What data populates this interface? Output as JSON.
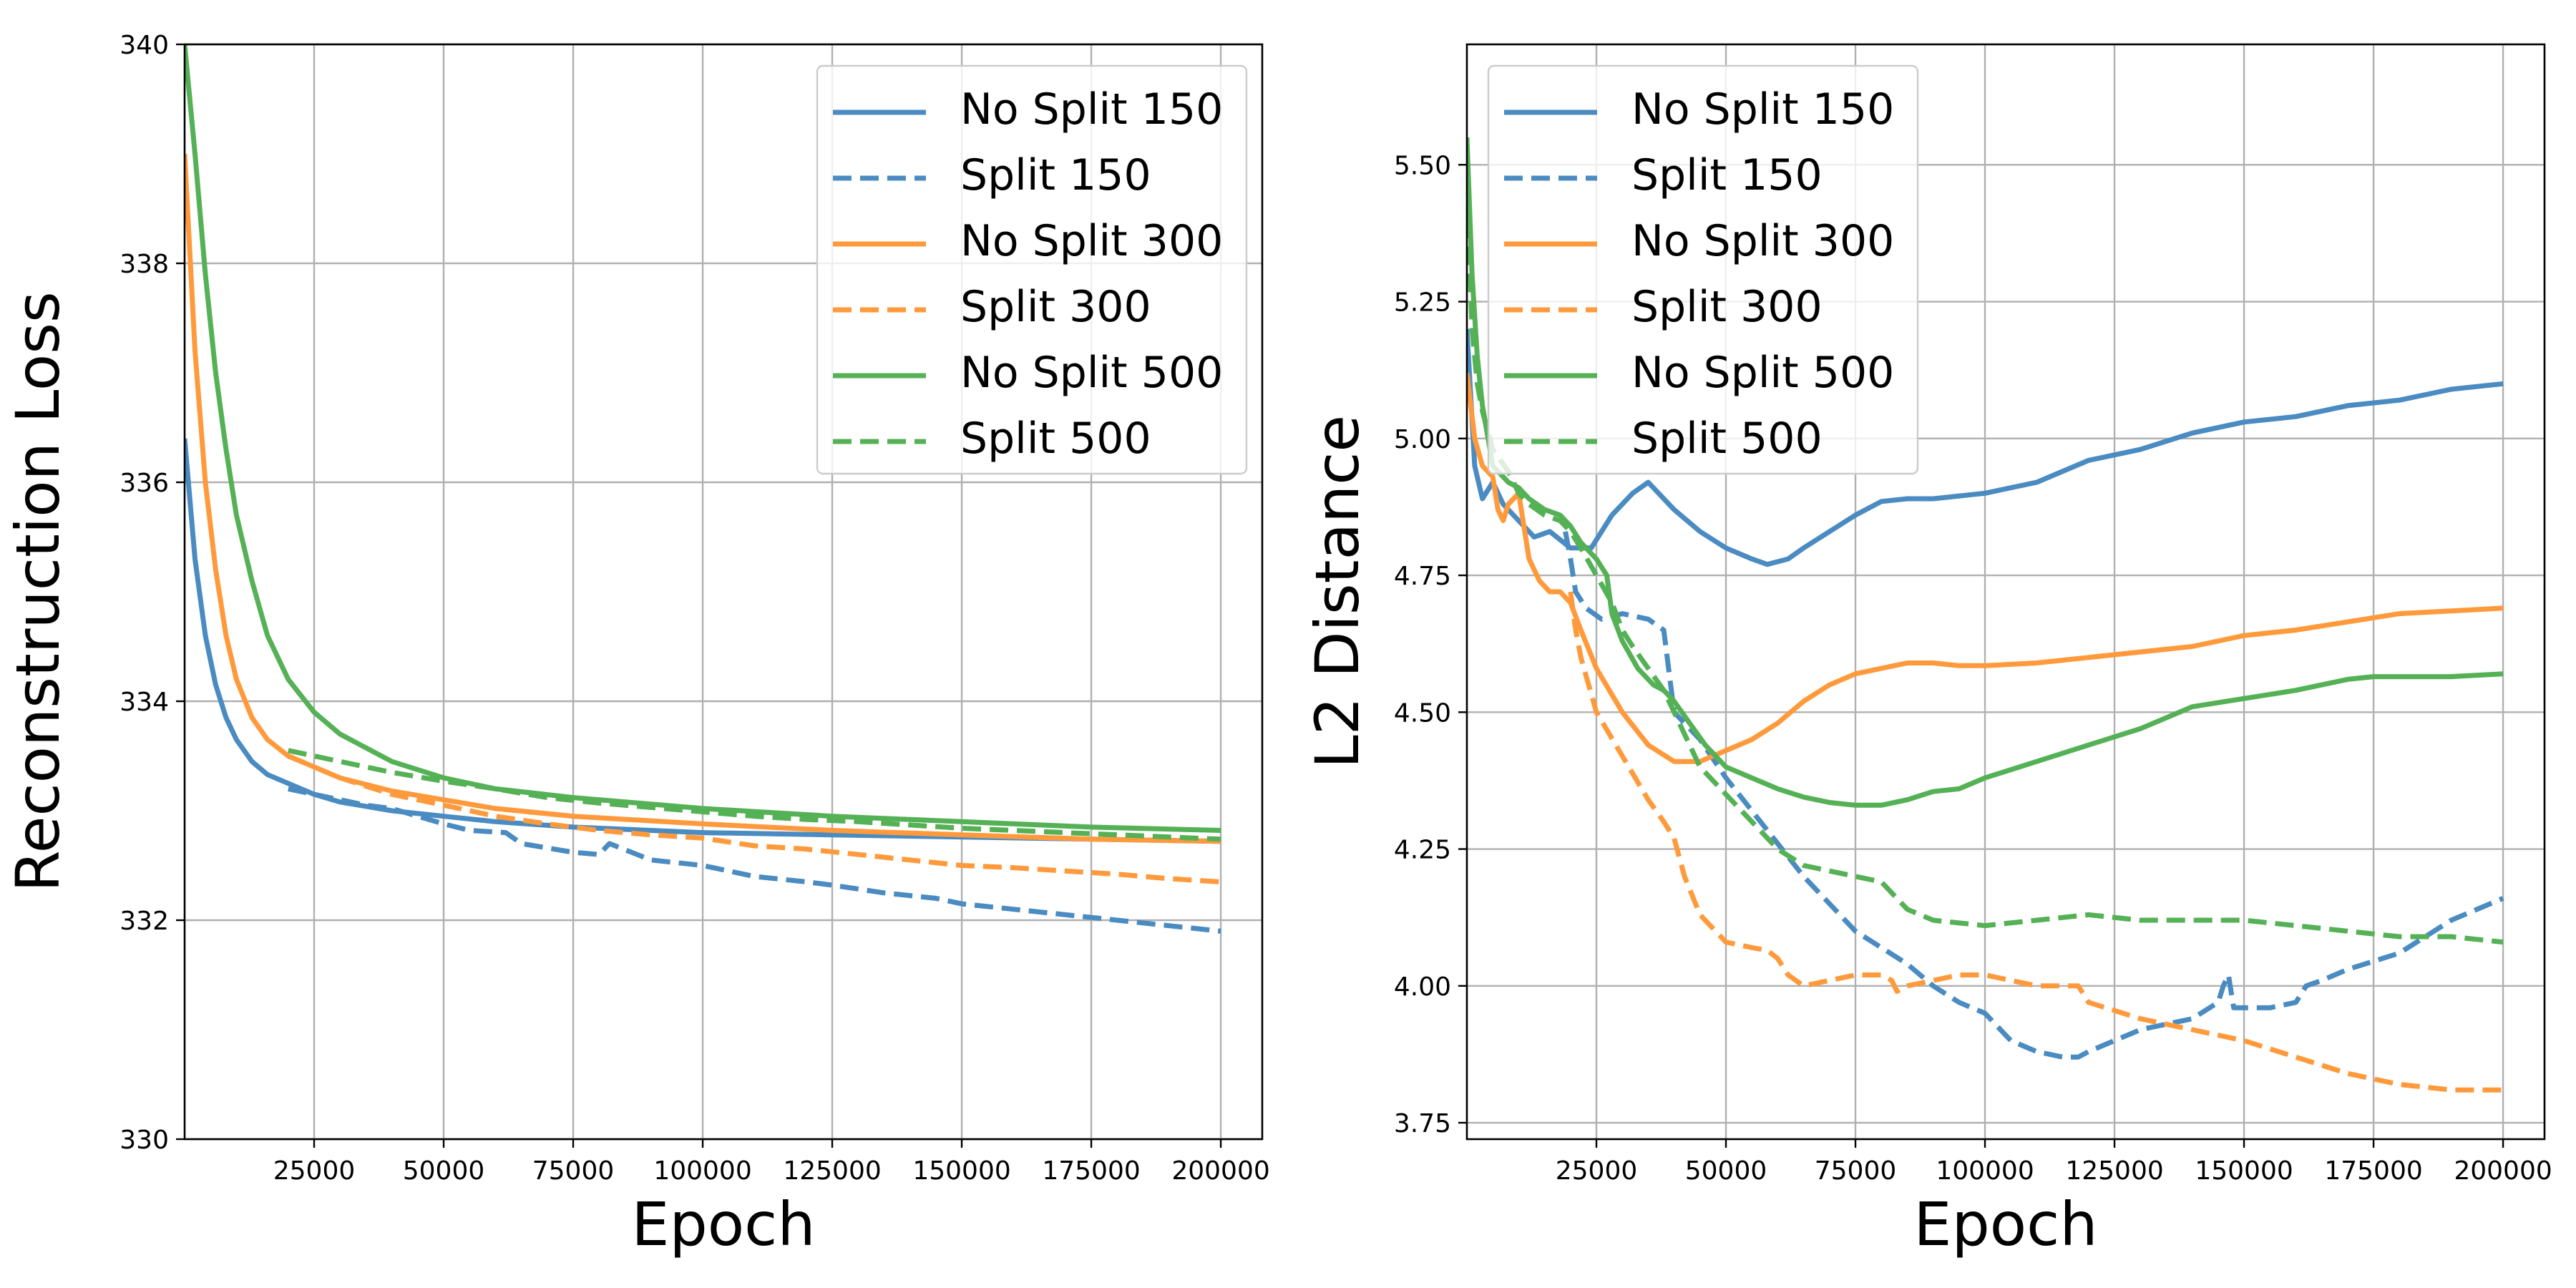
{
  "colors": {
    "blue": "#4a8bc2",
    "orange": "#ff9a3c",
    "green": "#55b155",
    "grid": "#b0b0b0"
  },
  "legend_entries": [
    {
      "label": "No Split 150",
      "color": "#4a8bc2",
      "style": "solid"
    },
    {
      "label": "Split 150",
      "color": "#4a8bc2",
      "style": "dashed"
    },
    {
      "label": "No Split 300",
      "color": "#ff9a3c",
      "style": "solid"
    },
    {
      "label": "Split 300",
      "color": "#ff9a3c",
      "style": "dashed"
    },
    {
      "label": "No Split 500",
      "color": "#55b155",
      "style": "solid"
    },
    {
      "label": "Split 500",
      "color": "#55b155",
      "style": "dashed"
    }
  ],
  "chart_data": [
    {
      "type": "line",
      "title": "",
      "xlabel": "Epoch",
      "ylabel": "Reconstruction Loss",
      "xlim": [
        0,
        208000
      ],
      "ylim": [
        330,
        340
      ],
      "xticks": [
        25000,
        50000,
        75000,
        100000,
        125000,
        150000,
        175000,
        200000
      ],
      "yticks": [
        330,
        332,
        334,
        336,
        338,
        340
      ],
      "grid": true,
      "legend_position": "top-right",
      "series": [
        {
          "name": "No Split 150",
          "color": "#4a8bc2",
          "dash": false,
          "x": [
            0,
            2000,
            4000,
            6000,
            8000,
            10000,
            13000,
            16000,
            20000,
            25000,
            30000,
            40000,
            50000,
            60000,
            75000,
            100000,
            125000,
            150000,
            175000,
            200000
          ],
          "y": [
            336.4,
            335.3,
            334.6,
            334.15,
            333.85,
            333.65,
            333.45,
            333.33,
            333.25,
            333.15,
            333.08,
            333.0,
            332.95,
            332.9,
            332.85,
            332.8,
            332.78,
            332.76,
            332.74,
            332.72
          ]
        },
        {
          "name": "Split 150",
          "color": "#4a8bc2",
          "dash": true,
          "x": [
            20000,
            25000,
            30000,
            35000,
            40000,
            45000,
            50000,
            55000,
            62000,
            65000,
            75000,
            80000,
            82000,
            90000,
            100000,
            110000,
            120000,
            125000,
            135000,
            145000,
            150000,
            160000,
            170000,
            180000,
            190000,
            200000
          ],
          "y": [
            333.2,
            333.15,
            333.1,
            333.05,
            333.02,
            332.95,
            332.88,
            332.82,
            332.8,
            332.7,
            332.62,
            332.6,
            332.7,
            332.55,
            332.5,
            332.4,
            332.35,
            332.32,
            332.25,
            332.2,
            332.15,
            332.1,
            332.05,
            332.0,
            331.95,
            331.9
          ]
        },
        {
          "name": "No Split 300",
          "color": "#ff9a3c",
          "dash": false,
          "x": [
            0,
            2000,
            4000,
            6000,
            8000,
            10000,
            13000,
            16000,
            20000,
            25000,
            30000,
            40000,
            50000,
            60000,
            75000,
            100000,
            125000,
            150000,
            175000,
            200000
          ],
          "y": [
            339.0,
            337.2,
            336.0,
            335.2,
            334.6,
            334.2,
            333.85,
            333.65,
            333.5,
            333.4,
            333.3,
            333.18,
            333.1,
            333.02,
            332.95,
            332.88,
            332.82,
            332.78,
            332.74,
            332.72
          ]
        },
        {
          "name": "Split 300",
          "color": "#ff9a3c",
          "dash": true,
          "x": [
            20000,
            25000,
            30000,
            40000,
            50000,
            60000,
            70000,
            80000,
            90000,
            100000,
            110000,
            120000,
            130000,
            140000,
            150000,
            160000,
            170000,
            180000,
            190000,
            200000
          ],
          "y": [
            333.5,
            333.4,
            333.3,
            333.15,
            333.05,
            332.95,
            332.88,
            332.82,
            332.78,
            332.75,
            332.68,
            332.65,
            332.6,
            332.55,
            332.5,
            332.48,
            332.45,
            332.42,
            332.38,
            332.35
          ]
        },
        {
          "name": "No Split 500",
          "color": "#55b155",
          "dash": false,
          "x": [
            0,
            2000,
            4000,
            6000,
            8000,
            10000,
            13000,
            16000,
            20000,
            25000,
            30000,
            40000,
            50000,
            60000,
            75000,
            100000,
            125000,
            150000,
            175000,
            200000
          ],
          "y": [
            340.0,
            339.0,
            337.9,
            337.0,
            336.3,
            335.7,
            335.1,
            334.6,
            334.2,
            333.9,
            333.7,
            333.45,
            333.3,
            333.2,
            333.12,
            333.02,
            332.95,
            332.9,
            332.85,
            332.82
          ]
        },
        {
          "name": "Split 500",
          "color": "#55b155",
          "dash": true,
          "x": [
            20000,
            25000,
            30000,
            40000,
            50000,
            60000,
            70000,
            80000,
            90000,
            100000,
            110000,
            120000,
            130000,
            140000,
            150000,
            160000,
            170000,
            180000,
            190000,
            200000
          ],
          "y": [
            333.55,
            333.5,
            333.45,
            333.35,
            333.27,
            333.2,
            333.12,
            333.07,
            333.03,
            332.99,
            332.95,
            332.92,
            332.9,
            332.87,
            332.84,
            332.82,
            332.8,
            332.78,
            332.76,
            332.74
          ]
        }
      ]
    },
    {
      "type": "line",
      "title": "",
      "xlabel": "Epoch",
      "ylabel": "L2 Distance",
      "xlim": [
        0,
        208000
      ],
      "ylim": [
        3.72,
        5.72
      ],
      "xticks": [
        25000,
        50000,
        75000,
        100000,
        125000,
        150000,
        175000,
        200000
      ],
      "yticks": [
        3.75,
        4.0,
        4.25,
        4.5,
        4.75,
        5.0,
        5.25,
        5.5
      ],
      "ytick_labels": [
        "3.75",
        "4.00",
        "4.25",
        "4.50",
        "4.75",
        "5.00",
        "5.25",
        "5.50"
      ],
      "grid": true,
      "legend_position": "top-left",
      "series": [
        {
          "name": "No Split 150",
          "color": "#4a8bc2",
          "dash": false,
          "x": [
            0,
            1500,
            3000,
            5000,
            7000,
            10000,
            13000,
            16000,
            20000,
            24000,
            28000,
            32000,
            35000,
            40000,
            45000,
            50000,
            55000,
            58000,
            62000,
            65000,
            70000,
            75000,
            80000,
            85000,
            90000,
            100000,
            110000,
            120000,
            130000,
            140000,
            150000,
            160000,
            170000,
            180000,
            190000,
            200000
          ],
          "y": [
            5.2,
            4.95,
            4.89,
            4.92,
            4.88,
            4.85,
            4.82,
            4.83,
            4.8,
            4.8,
            4.86,
            4.9,
            4.92,
            4.87,
            4.83,
            4.8,
            4.78,
            4.77,
            4.78,
            4.8,
            4.83,
            4.86,
            4.885,
            4.89,
            4.89,
            4.9,
            4.92,
            4.96,
            4.98,
            5.01,
            5.03,
            5.04,
            5.06,
            5.07,
            5.09,
            5.1
          ]
        },
        {
          "name": "Split 150",
          "color": "#4a8bc2",
          "dash": true,
          "x": [
            19000,
            20000,
            21000,
            23000,
            26000,
            30000,
            35000,
            38000,
            40000,
            45000,
            50000,
            55000,
            60000,
            65000,
            70000,
            75000,
            80000,
            85000,
            90000,
            95000,
            100000,
            105000,
            110000,
            115000,
            118000,
            120000,
            125000,
            130000,
            135000,
            140000,
            145000,
            146000,
            147000,
            148000,
            150000,
            155000,
            160000,
            162000,
            165000,
            170000,
            180000,
            190000,
            200000
          ],
          "y": [
            4.83,
            4.78,
            4.72,
            4.69,
            4.67,
            4.68,
            4.67,
            4.65,
            4.5,
            4.45,
            4.38,
            4.32,
            4.26,
            4.2,
            4.15,
            4.1,
            4.07,
            4.04,
            4.0,
            3.97,
            3.95,
            3.9,
            3.88,
            3.87,
            3.87,
            3.88,
            3.9,
            3.92,
            3.93,
            3.94,
            3.97,
            4.0,
            4.02,
            3.96,
            3.96,
            3.96,
            3.97,
            4.0,
            4.01,
            4.03,
            4.06,
            4.12,
            4.16
          ]
        },
        {
          "name": "No Split 300",
          "color": "#ff9a3c",
          "dash": false,
          "x": [
            0,
            1500,
            3000,
            5000,
            6000,
            7000,
            8000,
            10000,
            12000,
            14000,
            16000,
            18000,
            20000,
            22000,
            25000,
            30000,
            35000,
            40000,
            45000,
            50000,
            55000,
            60000,
            65000,
            70000,
            75000,
            80000,
            85000,
            90000,
            95000,
            100000,
            110000,
            120000,
            130000,
            140000,
            150000,
            160000,
            170000,
            180000,
            190000,
            200000
          ],
          "y": [
            5.12,
            5.0,
            4.95,
            4.93,
            4.87,
            4.85,
            4.88,
            4.9,
            4.78,
            4.74,
            4.72,
            4.72,
            4.7,
            4.65,
            4.58,
            4.5,
            4.44,
            4.41,
            4.41,
            4.43,
            4.45,
            4.48,
            4.52,
            4.55,
            4.57,
            4.58,
            4.59,
            4.59,
            4.585,
            4.585,
            4.59,
            4.6,
            4.61,
            4.62,
            4.64,
            4.65,
            4.665,
            4.68,
            4.685,
            4.69
          ]
        },
        {
          "name": "Split 300",
          "color": "#ff9a3c",
          "dash": true,
          "x": [
            20000,
            21000,
            22000,
            25000,
            30000,
            35000,
            38000,
            40000,
            42000,
            45000,
            50000,
            55000,
            58000,
            60000,
            62000,
            65000,
            70000,
            75000,
            80000,
            82000,
            83000,
            85000,
            90000,
            95000,
            100000,
            110000,
            118000,
            120000,
            125000,
            130000,
            140000,
            150000,
            160000,
            170000,
            180000,
            190000,
            200000
          ],
          "y": [
            4.72,
            4.65,
            4.6,
            4.5,
            4.42,
            4.34,
            4.3,
            4.27,
            4.2,
            4.13,
            4.08,
            4.07,
            4.065,
            4.05,
            4.02,
            4.0,
            4.01,
            4.02,
            4.02,
            4.01,
            3.99,
            4.0,
            4.01,
            4.02,
            4.02,
            4.0,
            4.0,
            3.97,
            3.955,
            3.94,
            3.92,
            3.9,
            3.87,
            3.84,
            3.82,
            3.81,
            3.81
          ]
        },
        {
          "name": "No Split 500",
          "color": "#55b155",
          "dash": false,
          "x": [
            0,
            1000,
            2000,
            3000,
            5000,
            8000,
            10000,
            12000,
            15000,
            18000,
            20000,
            22000,
            25000,
            27000,
            28000,
            30000,
            33000,
            36000,
            38000,
            40000,
            43000,
            46000,
            50000,
            55000,
            60000,
            65000,
            70000,
            75000,
            80000,
            85000,
            90000,
            95000,
            100000,
            110000,
            120000,
            130000,
            140000,
            150000,
            160000,
            170000,
            175000,
            180000,
            190000,
            200000
          ],
          "y": [
            5.55,
            5.3,
            5.15,
            5.06,
            4.95,
            4.92,
            4.91,
            4.89,
            4.87,
            4.86,
            4.84,
            4.81,
            4.78,
            4.75,
            4.68,
            4.63,
            4.58,
            4.55,
            4.54,
            4.52,
            4.48,
            4.44,
            4.4,
            4.38,
            4.36,
            4.345,
            4.335,
            4.33,
            4.33,
            4.34,
            4.355,
            4.36,
            4.38,
            4.41,
            4.44,
            4.47,
            4.51,
            4.525,
            4.54,
            4.56,
            4.565,
            4.565,
            4.565,
            4.57
          ]
        },
        {
          "name": "Split 500",
          "color": "#55b155",
          "dash": true,
          "x": [
            0,
            1000,
            2000,
            3000,
            5000,
            8000,
            10000,
            12000,
            15000,
            18000,
            20000,
            22000,
            25000,
            28000,
            30000,
            32000,
            35000,
            38000,
            40000,
            42000,
            45000,
            50000,
            55000,
            60000,
            65000,
            70000,
            75000,
            80000,
            85000,
            90000,
            100000,
            110000,
            120000,
            130000,
            140000,
            150000,
            160000,
            170000,
            180000,
            190000,
            200000
          ],
          "y": [
            5.45,
            5.2,
            5.1,
            5.05,
            4.98,
            4.94,
            4.9,
            4.88,
            4.86,
            4.85,
            4.83,
            4.8,
            4.75,
            4.7,
            4.65,
            4.62,
            4.58,
            4.54,
            4.5,
            4.46,
            4.4,
            4.35,
            4.3,
            4.25,
            4.22,
            4.21,
            4.2,
            4.19,
            4.14,
            4.12,
            4.11,
            4.12,
            4.13,
            4.12,
            4.12,
            4.12,
            4.11,
            4.1,
            4.09,
            4.09,
            4.08
          ]
        }
      ]
    }
  ]
}
